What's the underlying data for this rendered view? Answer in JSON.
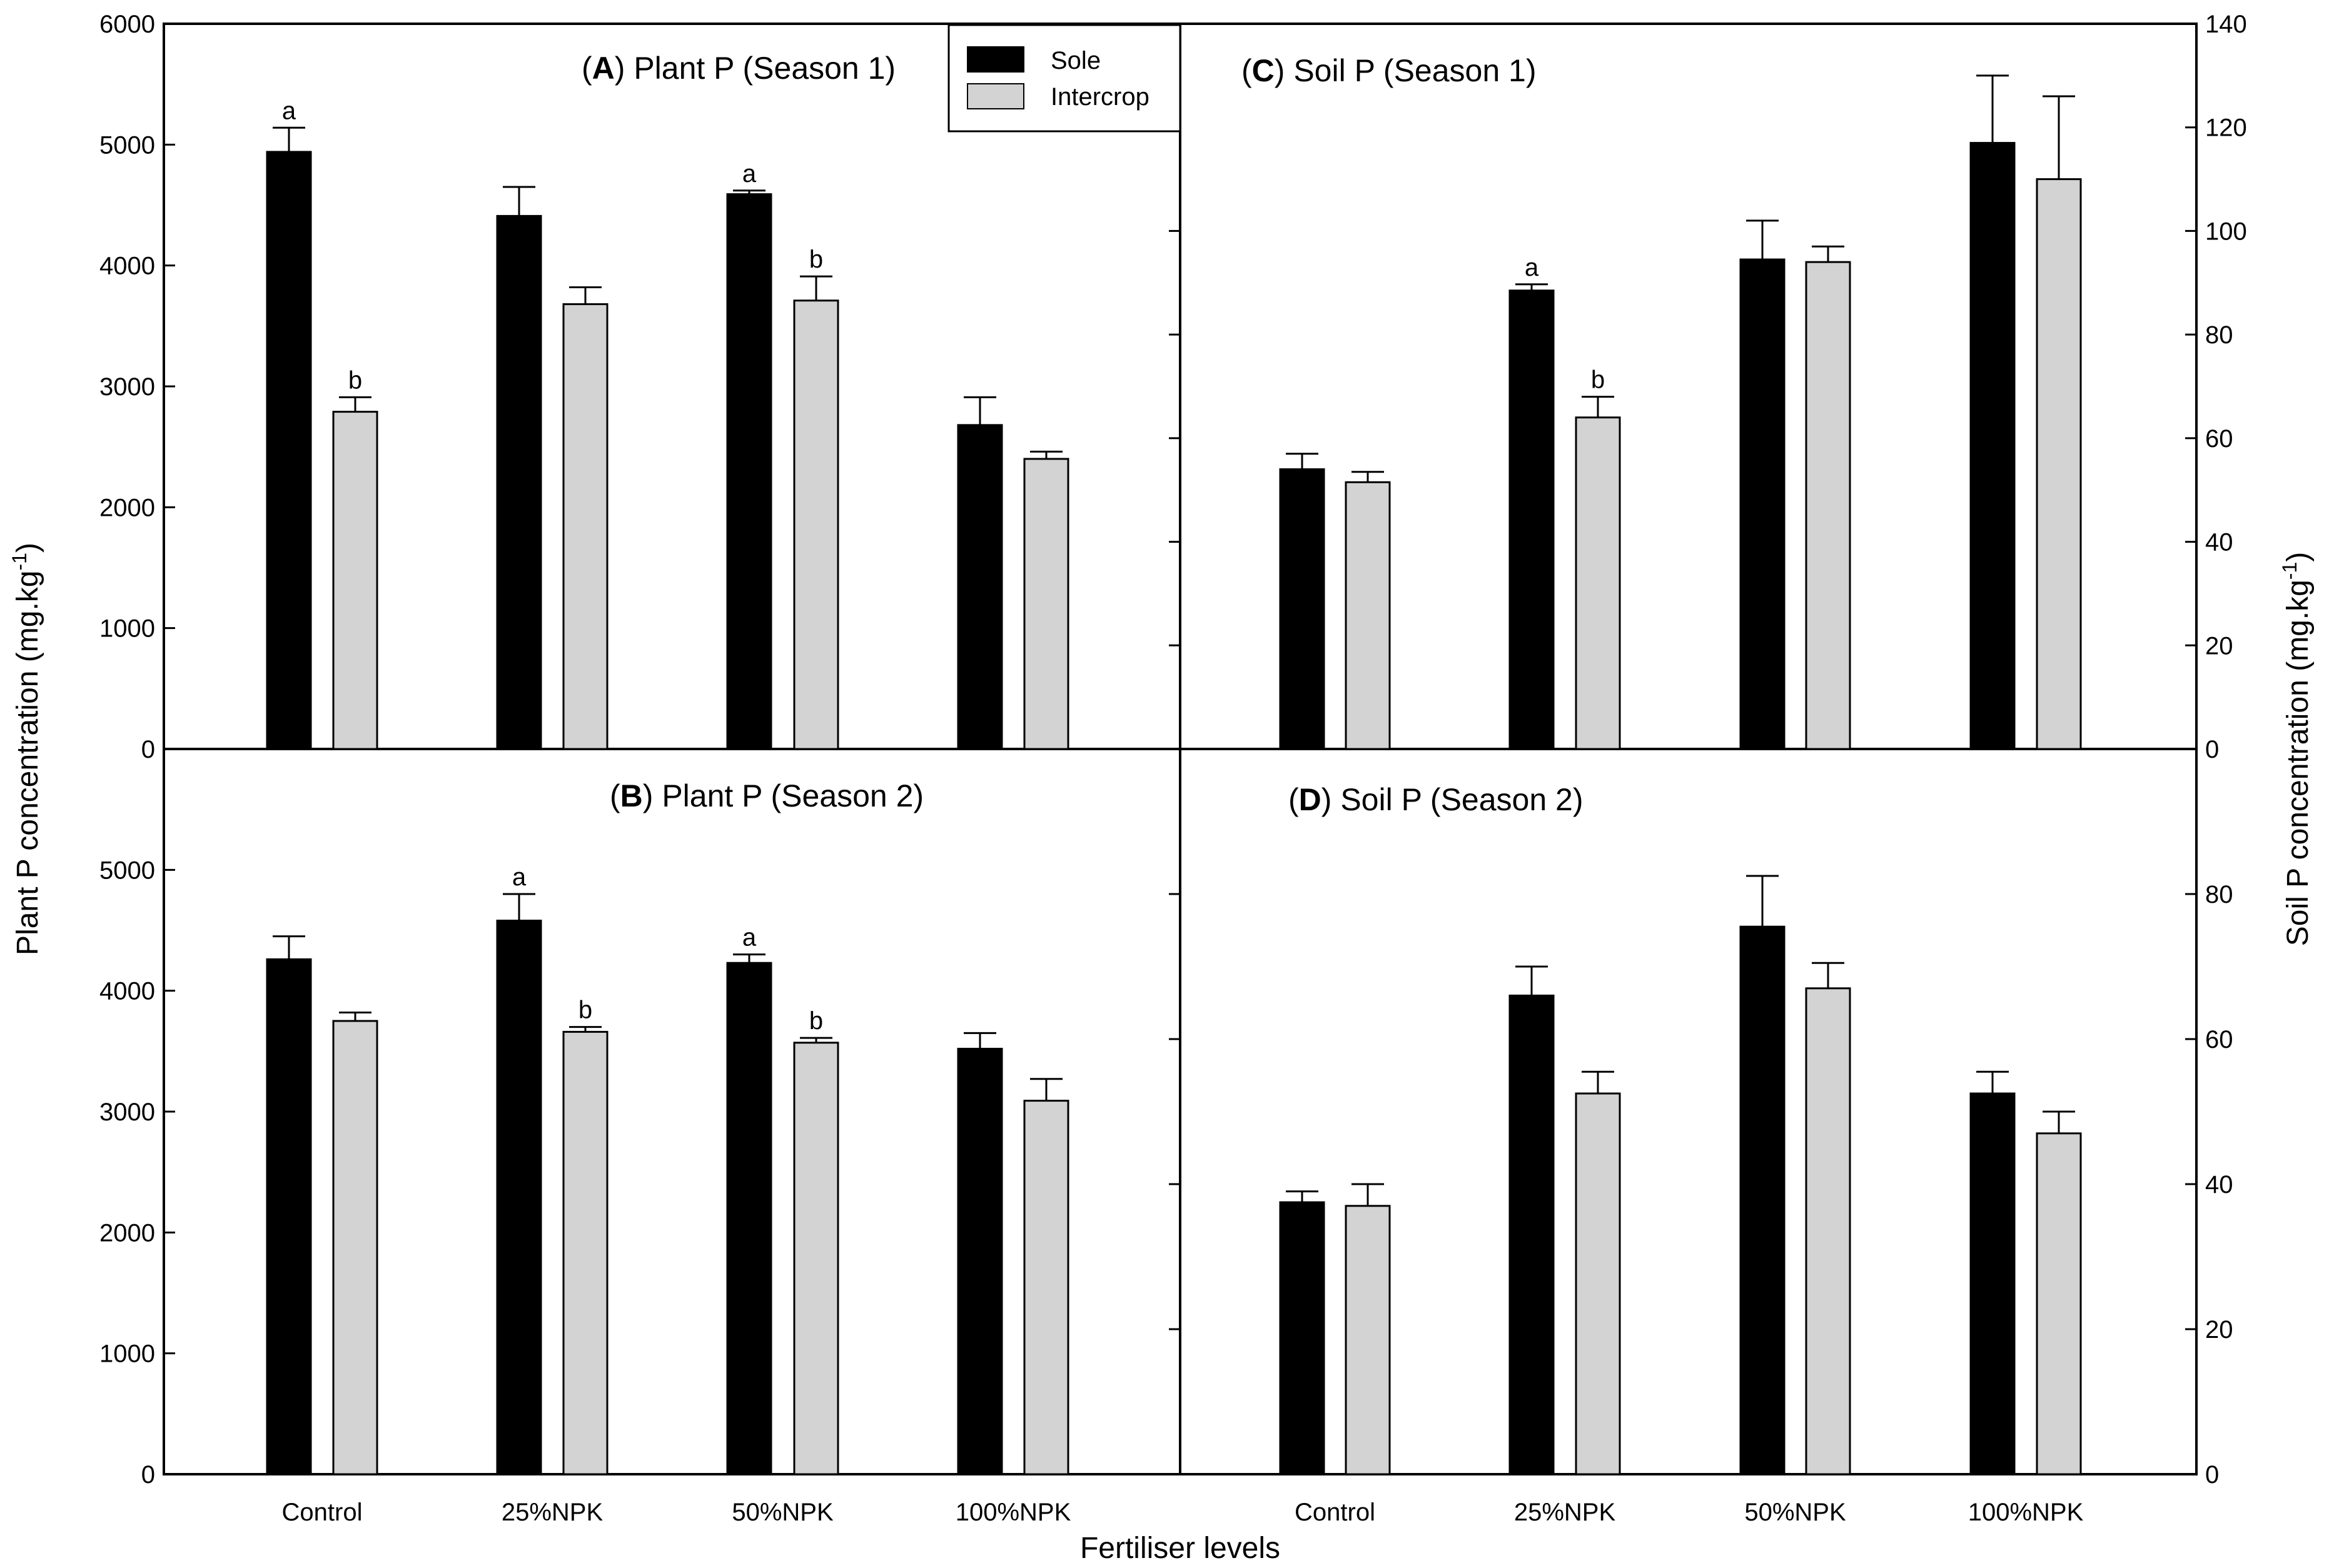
{
  "figure": {
    "x_axis_title": "Fertiliser levels",
    "y_left_title": "Plant P concentration (mg.kg",
    "y_right_title": "Soil P concentration (mg.kg",
    "unit_superscript": "-1",
    "unit_close": ")",
    "legend": [
      {
        "label": "Sole",
        "color": "#000000"
      },
      {
        "label": "Intercrop",
        "color": "#d3d3d3"
      }
    ]
  },
  "chart_data": [
    {
      "id": "A",
      "letter": "A",
      "title_rest": "Plant P (Season 1)",
      "type": "bar",
      "categories": [
        "Control",
        "25%NPK",
        "50%NPK",
        "100%NPK"
      ],
      "series": [
        {
          "name": "Sole",
          "values": [
            4940,
            4410,
            4590,
            2680
          ],
          "errors": [
            200,
            240,
            30,
            230
          ],
          "sig": [
            "a",
            "",
            "a",
            ""
          ]
        },
        {
          "name": "Intercrop",
          "values": [
            2790,
            3680,
            3710,
            2400
          ],
          "errors": [
            120,
            140,
            200,
            60
          ],
          "sig": [
            "b",
            "",
            "b",
            ""
          ]
        }
      ],
      "ylim": [
        0,
        6000
      ],
      "yticks": [
        0,
        1000,
        2000,
        3000,
        4000,
        5000,
        6000
      ],
      "ylabel": "Plant P concentration (mg.kg-1)"
    },
    {
      "id": "B",
      "letter": "B",
      "title_rest": "Plant P (Season 2)",
      "type": "bar",
      "categories": [
        "Control",
        "25%NPK",
        "50%NPK",
        "100%NPK"
      ],
      "series": [
        {
          "name": "Sole",
          "values": [
            4260,
            4580,
            4230,
            3520
          ],
          "errors": [
            190,
            220,
            70,
            130
          ],
          "sig": [
            "",
            "a",
            "a",
            ""
          ]
        },
        {
          "name": "Intercrop",
          "values": [
            3750,
            3660,
            3570,
            3090
          ],
          "errors": [
            70,
            40,
            40,
            180
          ],
          "sig": [
            "",
            "b",
            "b",
            ""
          ]
        }
      ],
      "ylim": [
        0,
        6000
      ],
      "yticks": [
        0,
        1000,
        2000,
        3000,
        4000,
        5000
      ],
      "xlabel": "Fertiliser levels"
    },
    {
      "id": "C",
      "letter": "C",
      "title_rest": "Soil P (Season 1)",
      "type": "bar",
      "categories": [
        "Control",
        "25%NPK",
        "50%NPK",
        "100%NPK"
      ],
      "series": [
        {
          "name": "Sole",
          "values": [
            54,
            88.5,
            94.5,
            117
          ],
          "errors": [
            3,
            1.2,
            7.5,
            13
          ],
          "sig": [
            "",
            "a",
            "",
            ""
          ]
        },
        {
          "name": "Intercrop",
          "values": [
            51.5,
            64,
            94,
            110
          ],
          "errors": [
            2,
            4,
            3,
            16
          ],
          "sig": [
            "",
            "b",
            "",
            ""
          ]
        }
      ],
      "ylim": [
        0,
        140
      ],
      "yticks": [
        0,
        20,
        40,
        60,
        80,
        100,
        120,
        140
      ],
      "ylabel": "Soil P concentration (mg.kg-1)"
    },
    {
      "id": "D",
      "letter": "D",
      "title_rest": "Soil P (Season 2)",
      "type": "bar",
      "categories": [
        "Control",
        "25%NPK",
        "50%NPK",
        "100%NPK"
      ],
      "series": [
        {
          "name": "Sole",
          "values": [
            37.5,
            66,
            75.5,
            52.5
          ],
          "errors": [
            1.5,
            4,
            7,
            3
          ],
          "sig": [
            "",
            "",
            "",
            ""
          ]
        },
        {
          "name": "Intercrop",
          "values": [
            37,
            52.5,
            67,
            47
          ],
          "errors": [
            3,
            3,
            3.5,
            3
          ],
          "sig": [
            "",
            "",
            "",
            ""
          ]
        }
      ],
      "ylim": [
        0,
        100
      ],
      "yticks": [
        0,
        20,
        40,
        60,
        80
      ],
      "xlabel": "Fertiliser levels"
    }
  ]
}
